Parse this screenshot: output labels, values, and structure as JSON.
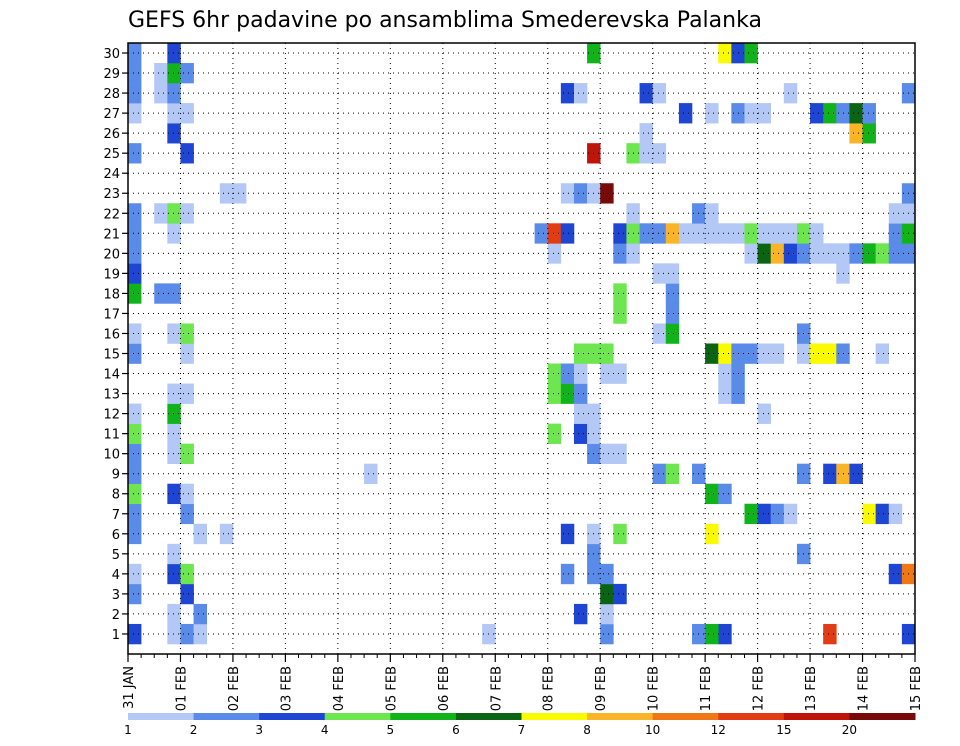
{
  "chart_data": {
    "type": "heatmap",
    "title": "GEFS 6hr padavine po ansamblima Smederevska Palanka",
    "xlabel": "",
    "ylabel": "",
    "members": [
      1,
      2,
      3,
      4,
      5,
      6,
      7,
      8,
      9,
      10,
      11,
      12,
      13,
      14,
      15,
      16,
      17,
      18,
      19,
      20,
      21,
      22,
      23,
      24,
      25,
      26,
      27,
      28,
      29,
      30
    ],
    "x_tick_labels": [
      "31 JAN",
      "01 FEB",
      "02 FEB",
      "03 FEB",
      "04 FEB",
      "05 FEB",
      "06 FEB",
      "07 FEB",
      "08 FEB",
      "09 FEB",
      "10 FEB",
      "11 FEB",
      "12 FEB",
      "13 FEB",
      "14 FEB",
      "15 FEB"
    ],
    "xlim_steps": [
      0,
      60
    ],
    "step_hours": 6,
    "grid": true,
    "legend_position": "bottom",
    "levels": [
      1,
      2,
      3,
      4,
      5,
      6,
      7,
      8,
      10,
      12,
      15,
      20
    ],
    "level_labels": [
      "1",
      "2",
      "3",
      "4",
      "5",
      "6",
      "7",
      "8",
      "10",
      "12",
      "15",
      "20"
    ],
    "level_colors": [
      "#b4c8f5",
      "#5a8be8",
      "#1e46d2",
      "#6ee650",
      "#10b41a",
      "#0a6414",
      "#fafa00",
      "#fab428",
      "#f07814",
      "#e13c14",
      "#be140a",
      "#780a0a"
    ],
    "values_mm_by_member": {
      "1": [
        [
          1,
          3
        ],
        [
          4,
          1
        ],
        [
          5,
          2
        ],
        [
          6,
          1
        ],
        [
          28,
          1
        ],
        [
          37,
          2
        ],
        [
          44,
          2
        ],
        [
          46,
          3
        ],
        [
          45,
          5
        ],
        [
          54,
          14
        ],
        [
          60,
          3
        ]
      ],
      "2": [
        [
          4,
          1
        ],
        [
          6,
          2
        ],
        [
          35,
          3
        ],
        [
          37,
          1
        ]
      ],
      "3": [
        [
          1,
          2
        ],
        [
          5,
          3
        ],
        [
          37,
          6
        ],
        [
          38,
          3
        ]
      ],
      "4": [
        [
          1,
          1
        ],
        [
          4,
          3
        ],
        [
          5,
          4
        ],
        [
          34,
          2
        ],
        [
          36,
          2
        ],
        [
          37,
          2
        ],
        [
          59,
          3
        ],
        [
          60,
          10
        ]
      ],
      "5": [
        [
          4,
          1
        ],
        [
          36,
          2
        ],
        [
          52,
          2
        ]
      ],
      "6": [
        [
          1,
          2
        ],
        [
          6,
          1
        ],
        [
          8,
          1
        ],
        [
          34,
          3
        ],
        [
          36,
          1
        ],
        [
          38,
          4
        ],
        [
          45,
          7
        ]
      ],
      "7": [
        [
          1,
          2
        ],
        [
          5,
          2
        ],
        [
          48,
          5
        ],
        [
          49,
          3
        ],
        [
          50,
          2
        ],
        [
          51,
          1
        ],
        [
          57,
          7
        ],
        [
          58,
          3
        ],
        [
          59,
          1
        ]
      ],
      "8": [
        [
          1,
          4
        ],
        [
          4,
          3
        ],
        [
          5,
          1
        ],
        [
          45,
          5
        ],
        [
          46,
          2
        ]
      ],
      "9": [
        [
          1,
          2
        ],
        [
          19,
          1
        ],
        [
          41,
          2
        ],
        [
          42,
          4
        ],
        [
          44,
          2
        ],
        [
          52,
          2
        ],
        [
          54,
          3
        ],
        [
          55,
          9
        ],
        [
          56,
          3
        ]
      ],
      "10": [
        [
          1,
          2
        ],
        [
          4,
          1
        ],
        [
          5,
          4
        ],
        [
          36,
          2
        ],
        [
          37,
          1
        ],
        [
          38,
          1
        ]
      ],
      "11": [
        [
          1,
          4
        ],
        [
          4,
          1
        ],
        [
          33,
          4
        ],
        [
          35,
          3
        ],
        [
          36,
          1
        ]
      ],
      "12": [
        [
          1,
          1
        ],
        [
          4,
          5
        ],
        [
          35,
          1
        ],
        [
          36,
          1
        ],
        [
          49,
          1
        ]
      ],
      "13": [
        [
          4,
          1
        ],
        [
          5,
          1
        ],
        [
          33,
          4
        ],
        [
          34,
          5
        ],
        [
          35,
          2
        ],
        [
          46,
          1
        ],
        [
          47,
          2
        ]
      ],
      "14": [
        [
          33,
          4
        ],
        [
          34,
          2
        ],
        [
          35,
          1
        ],
        [
          37,
          1
        ],
        [
          38,
          1
        ],
        [
          46,
          1
        ],
        [
          47,
          2
        ]
      ],
      "15": [
        [
          1,
          2
        ],
        [
          5,
          1
        ],
        [
          35,
          4
        ],
        [
          36,
          4
        ],
        [
          37,
          4
        ],
        [
          45,
          6
        ],
        [
          46,
          7
        ],
        [
          47,
          2
        ],
        [
          48,
          2
        ],
        [
          49,
          1
        ],
        [
          50,
          1
        ],
        [
          52,
          1
        ],
        [
          53,
          7
        ],
        [
          54,
          7
        ],
        [
          55,
          2
        ],
        [
          58,
          1
        ]
      ],
      "16": [
        [
          1,
          1
        ],
        [
          4,
          1
        ],
        [
          5,
          4
        ],
        [
          41,
          1
        ],
        [
          42,
          5
        ],
        [
          52,
          2
        ]
      ],
      "17": [
        [
          38,
          4
        ],
        [
          42,
          2
        ]
      ],
      "18": [
        [
          1,
          5
        ],
        [
          3,
          2
        ],
        [
          4,
          2
        ],
        [
          38,
          4
        ],
        [
          42,
          2
        ]
      ],
      "19": [
        [
          1,
          3
        ],
        [
          41,
          1
        ],
        [
          42,
          1
        ],
        [
          55,
          1
        ]
      ],
      "20": [
        [
          1,
          2
        ],
        [
          33,
          1
        ],
        [
          38,
          2
        ],
        [
          39,
          1
        ],
        [
          48,
          1
        ],
        [
          49,
          6
        ],
        [
          50,
          8
        ],
        [
          51,
          3
        ],
        [
          52,
          2
        ],
        [
          53,
          1
        ],
        [
          54,
          1
        ],
        [
          55,
          1
        ],
        [
          56,
          2
        ],
        [
          57,
          5
        ],
        [
          58,
          4
        ],
        [
          59,
          2
        ],
        [
          60,
          2
        ]
      ],
      "21": [
        [
          1,
          2
        ],
        [
          4,
          1
        ],
        [
          32,
          2
        ],
        [
          33,
          12
        ],
        [
          34,
          3
        ],
        [
          38,
          3
        ],
        [
          39,
          4
        ],
        [
          40,
          2
        ],
        [
          41,
          2
        ],
        [
          42,
          8
        ],
        [
          43,
          1
        ],
        [
          44,
          1
        ],
        [
          45,
          1
        ],
        [
          46,
          1
        ],
        [
          47,
          1
        ],
        [
          48,
          4
        ],
        [
          49,
          1
        ],
        [
          50,
          1
        ],
        [
          51,
          1
        ],
        [
          52,
          4
        ],
        [
          53,
          1
        ],
        [
          59,
          2
        ],
        [
          60,
          5
        ]
      ],
      "22": [
        [
          1,
          2
        ],
        [
          3,
          1
        ],
        [
          4,
          4
        ],
        [
          5,
          1
        ],
        [
          39,
          1
        ],
        [
          44,
          2
        ],
        [
          45,
          1
        ],
        [
          59,
          1
        ],
        [
          60,
          1
        ]
      ],
      "23": [
        [
          8,
          1
        ],
        [
          9,
          1
        ],
        [
          34,
          1
        ],
        [
          35,
          2
        ],
        [
          36,
          1
        ],
        [
          37,
          20
        ],
        [
          60,
          2
        ]
      ],
      "24": [],
      "25": [
        [
          1,
          2
        ],
        [
          5,
          3
        ],
        [
          36,
          15
        ],
        [
          39,
          4
        ],
        [
          40,
          1
        ],
        [
          41,
          1
        ]
      ],
      "26": [
        [
          4,
          3
        ],
        [
          40,
          1
        ],
        [
          56,
          8
        ],
        [
          57,
          5
        ]
      ],
      "27": [
        [
          1,
          1
        ],
        [
          4,
          1
        ],
        [
          5,
          1
        ],
        [
          43,
          3
        ],
        [
          45,
          1
        ],
        [
          47,
          2
        ],
        [
          48,
          1
        ],
        [
          49,
          1
        ],
        [
          53,
          3
        ],
        [
          54,
          5
        ],
        [
          55,
          2
        ],
        [
          56,
          6
        ],
        [
          57,
          2
        ]
      ],
      "28": [
        [
          1,
          2
        ],
        [
          3,
          1
        ],
        [
          4,
          2
        ],
        [
          34,
          3
        ],
        [
          35,
          1
        ],
        [
          40,
          3
        ],
        [
          41,
          1
        ],
        [
          51,
          1
        ],
        [
          60,
          2
        ]
      ],
      "29": [
        [
          1,
          2
        ],
        [
          3,
          1
        ],
        [
          4,
          5
        ],
        [
          5,
          2
        ]
      ],
      "30": [
        [
          1,
          2
        ],
        [
          4,
          3
        ],
        [
          36,
          5
        ],
        [
          46,
          7
        ],
        [
          47,
          3
        ],
        [
          48,
          5
        ]
      ]
    }
  }
}
